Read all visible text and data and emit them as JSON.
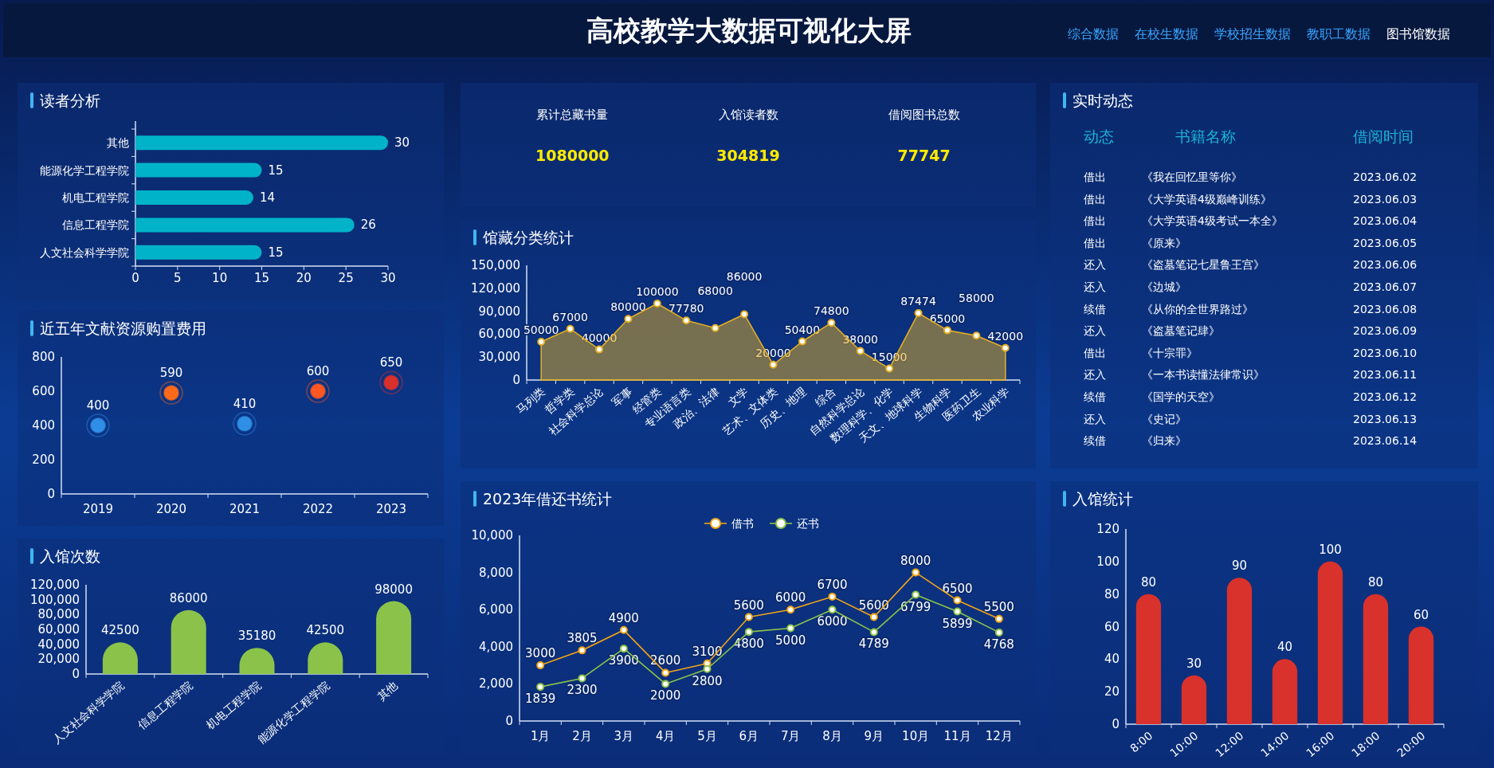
{
  "chart_data": [
    {
      "type": "other",
      "title": "高校教学大数据可视化大屏",
      "annotations": [
        "综合数据",
        "在校生数据",
        "学校招生数据",
        "教职工数据",
        "图书馆数据"
      ]
    },
    {
      "type": "bar",
      "title": "读者分析",
      "orientation": "horizontal",
      "categories": [
        "其他",
        "能源化学工程学院",
        "机电工程学院",
        "信息工程学院",
        "人文社会科学学院"
      ],
      "values": [
        30,
        15,
        14,
        26,
        15
      ],
      "color": "#00b3c8",
      "xlim": [
        0,
        30
      ],
      "xticks": [
        0,
        5,
        10,
        15,
        20,
        25,
        30
      ],
      "data_labels": true
    },
    {
      "type": "scatter",
      "title": "近五年文献资源购置费用",
      "categories": [
        "2019",
        "2020",
        "2021",
        "2022",
        "2023"
      ],
      "values": [
        400,
        590,
        410,
        600,
        650
      ],
      "colors": [
        "#2f8fe6",
        "#ff6a1a",
        "#2f8fe6",
        "#ff5722",
        "#d9302c"
      ],
      "ylim": [
        0,
        800
      ],
      "yticks": [
        0,
        200,
        400,
        600,
        800
      ],
      "marker": "circle",
      "data_labels": true
    },
    {
      "type": "bar",
      "title": "入馆次数",
      "categories": [
        "人文社会科学学院",
        "信息工程学院",
        "机电工程学院",
        "能源化学工程学院",
        "其他"
      ],
      "values": [
        42500,
        86000,
        35180,
        42500,
        98000
      ],
      "color": "#8bc34a",
      "ylim": [
        0,
        120000
      ],
      "yticks": [
        0,
        {
          "value": 20000,
          "label": "20,000"
        },
        {
          "value": 40000,
          "label": "40,000"
        },
        {
          "value": 60000,
          "label": "60,000"
        },
        {
          "value": 80000,
          "label": "80,000"
        },
        {
          "value": 100000,
          "label": "100,000"
        },
        {
          "value": 120000,
          "label": "120,000"
        }
      ],
      "data_labels": true
    },
    {
      "type": "other",
      "categories": [
        "累计总藏书量",
        "入馆读者数",
        "借阅图书总数"
      ],
      "values": [
        1080000,
        304819,
        77747
      ],
      "data_labels": true
    },
    {
      "type": "area",
      "title": "馆藏分类统计",
      "categories": [
        "马列类",
        "哲学类",
        "社会科学总论",
        "军事",
        "经管类",
        "专业语言类",
        "政治、法律",
        "文学",
        "艺术、文体类",
        "历史、地理",
        "综合",
        "自然科学总论",
        "数理科学、化学",
        "天文、地球科学",
        "生物科学",
        "医药卫生",
        "农业科学"
      ],
      "values": [
        50000,
        67000,
        40000,
        80000,
        100000,
        77780,
        68000,
        86000,
        20000,
        50400,
        74800,
        38000,
        15000,
        87474,
        65000,
        58000,
        42000
      ],
      "color": "#e3ad22",
      "ylim": [
        0,
        150000
      ],
      "yticks": [
        0,
        {
          "value": 30000,
          "label": "30,000"
        },
        {
          "value": 60000,
          "label": "60,000"
        },
        {
          "value": 90000,
          "label": "90,000"
        },
        {
          "value": 120000,
          "label": "120,000"
        },
        {
          "value": 150000,
          "label": "150,000"
        }
      ],
      "marker": "circle",
      "data_labels": true
    },
    {
      "type": "line",
      "title": "2023年借还书统计",
      "categories": [
        "1月",
        "2月",
        "3月",
        "4月",
        "5月",
        "6月",
        "7月",
        "8月",
        "9月",
        "10月",
        "11月",
        "12月"
      ],
      "series": [
        {
          "name": "借书",
          "color": "#f2a516",
          "values": [
            3000,
            3805,
            4900,
            2600,
            3100,
            5600,
            6000,
            6700,
            5600,
            8000,
            6500,
            5500
          ]
        },
        {
          "name": "还书",
          "color": "#8bc34a",
          "values": [
            1839,
            2300,
            3900,
            2000,
            2800,
            4800,
            5000,
            6000,
            4789,
            6799,
            5899,
            4768
          ]
        }
      ],
      "ylim": [
        0,
        10000
      ],
      "yticks": [
        0,
        {
          "value": 2000,
          "label": "2,000"
        },
        {
          "value": 4000,
          "label": "4,000"
        },
        {
          "value": 6000,
          "label": "6,000"
        },
        {
          "value": 8000,
          "label": "8,000"
        },
        {
          "value": 10000,
          "label": "10,000"
        }
      ],
      "legend": "top",
      "marker": "circle",
      "data_labels": true
    },
    {
      "type": "other",
      "title": "实时动态",
      "annotations": [
        "动态",
        "书籍名称",
        "借阅时间",
        "借出",
        "《我在回忆里等你》",
        "2023.06.02",
        "借出",
        "《大学英语4级巅峰训练》",
        "2023.06.03",
        "借出",
        "《大学英语4级考试一本全》",
        "2023.06.04",
        "借出",
        "《原来》",
        "2023.06.05",
        "还入",
        "《盗墓笔记七星鲁王宫》",
        "2023.06.06",
        "还入",
        "《边城》",
        "2023.06.07",
        "续借",
        "《从你的全世界路过》",
        "2023.06.08",
        "还入",
        "《盗墓笔记肆》",
        "2023.06.09",
        "借出",
        "《十宗罪》",
        "2023.06.10",
        "还入",
        "《一本书读懂法律常识》",
        "2023.06.11",
        "续借",
        "《国学的天空》",
        "2023.06.12",
        "还入",
        "《史记》",
        "2023.06.13",
        "续借",
        "《归来》",
        "2023.06.14"
      ]
    },
    {
      "type": "bar",
      "title": "入馆统计",
      "categories": [
        "8:00",
        "10:00",
        "12:00",
        "14:00",
        "16:00",
        "18:00",
        "20:00"
      ],
      "values": [
        80,
        30,
        90,
        40,
        100,
        80,
        60
      ],
      "color": "#d9312b",
      "ylim": [
        0,
        120
      ],
      "yticks": [
        0,
        20,
        40,
        60,
        80,
        100,
        120
      ],
      "data_labels": true
    }
  ]
}
